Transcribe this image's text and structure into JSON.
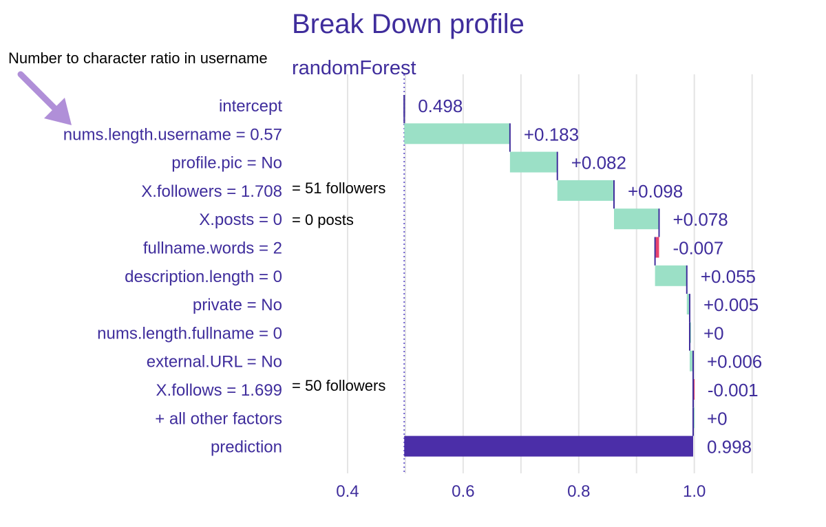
{
  "chart_data": {
    "type": "waterfall",
    "title": "Break Down profile",
    "subtitle": "randomForest",
    "baseline": 0.498,
    "xticks": [
      0.4,
      0.6,
      0.8,
      1.0
    ],
    "tick_labels": [
      "0.4",
      "0.6",
      "0.8",
      "1.0"
    ],
    "xlim": [
      0.3,
      1.21
    ],
    "grid": true,
    "rows": [
      {
        "label": "intercept",
        "start": 0.498,
        "end": 0.498,
        "value_label": "0.498",
        "kind": "intercept"
      },
      {
        "label": "nums.length.username = 0.57",
        "start": 0.498,
        "end": 0.681,
        "value_label": "+0.183",
        "kind": "positive"
      },
      {
        "label": "profile.pic = No",
        "start": 0.681,
        "end": 0.763,
        "value_label": "+0.082",
        "kind": "positive"
      },
      {
        "label": "X.followers = 1.708",
        "start": 0.763,
        "end": 0.861,
        "value_label": "+0.098",
        "kind": "positive"
      },
      {
        "label": "X.posts = 0",
        "start": 0.861,
        "end": 0.939,
        "value_label": "+0.078",
        "kind": "positive"
      },
      {
        "label": "fullname.words = 2",
        "start": 0.939,
        "end": 0.932,
        "value_label": "-0.007",
        "kind": "negative"
      },
      {
        "label": "description.length = 0",
        "start": 0.932,
        "end": 0.987,
        "value_label": "+0.055",
        "kind": "positive"
      },
      {
        "label": "private = No",
        "start": 0.987,
        "end": 0.992,
        "value_label": "+0.005",
        "kind": "positive"
      },
      {
        "label": "nums.length.fullname = 0",
        "start": 0.992,
        "end": 0.992,
        "value_label": "+0",
        "kind": "positive"
      },
      {
        "label": "external.URL = No",
        "start": 0.992,
        "end": 0.998,
        "value_label": "+0.006",
        "kind": "positive"
      },
      {
        "label": "X.follows = 1.699",
        "start": 0.999,
        "end": 0.998,
        "value_label": "-0.001",
        "kind": "negative"
      },
      {
        "label": "+ all other factors",
        "start": 0.998,
        "end": 0.998,
        "value_label": "+0",
        "kind": "positive"
      },
      {
        "label": "prediction",
        "start": 0.498,
        "end": 0.998,
        "value_label": "0.998",
        "kind": "prediction"
      }
    ],
    "colors": {
      "positive": "#9be0c6",
      "negative": "#e8436e",
      "prediction": "#4b2ea8",
      "connector": "#3f2d9c",
      "text": "#3f2d9c",
      "grid": "#e4e4e4",
      "arrow": "#b08fd8"
    }
  },
  "annotations": [
    {
      "text": "Number to character ratio in username",
      "target_row": 1
    },
    {
      "text": "= 51 followers",
      "target_row": 3
    },
    {
      "text": "= 0 posts",
      "target_row": 4
    },
    {
      "text": "= 50 followers",
      "target_row": 10
    }
  ]
}
